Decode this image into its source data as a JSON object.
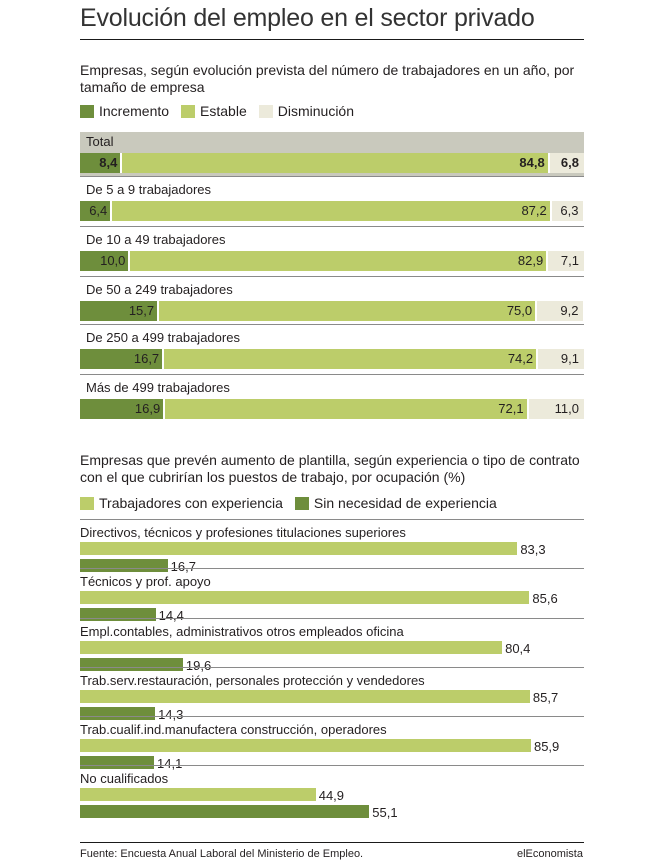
{
  "title": "Evolución del empleo en el sector privado",
  "colors": {
    "increment": "#6e8e3c",
    "stable": "#bccd6a",
    "decrease": "#eceadb",
    "total_band": "#c9c9bd"
  },
  "chart_data": [
    {
      "type": "bar",
      "stacked": true,
      "orientation": "horizontal",
      "title": "Empresas, según evolución prevista del número de trabajadores en un año, por tamaño de empresa",
      "legend": [
        "Incremento",
        "Estable",
        "Disminución"
      ],
      "legend_placement": "top-left",
      "categories": [
        "Total",
        "De 5 a 9 trabajadores",
        "De 10 a 49 trabajadores",
        "De 50 a 249 trabajadores",
        "De 250 a 499 trabajadores",
        "Más de 499 trabajadores"
      ],
      "series": [
        {
          "name": "Incremento",
          "values": [
            8.4,
            6.4,
            10.0,
            15.7,
            16.7,
            16.9
          ],
          "labels": [
            "8,4",
            "6,4",
            "10,0",
            "15,7",
            "16,7",
            "16,9"
          ]
        },
        {
          "name": "Estable",
          "values": [
            84.8,
            87.2,
            82.9,
            75.0,
            74.2,
            72.1
          ],
          "labels": [
            "84,8",
            "87,2",
            "82,9",
            "75,0",
            "74,2",
            "72,1"
          ]
        },
        {
          "name": "Disminución",
          "values": [
            6.8,
            6.3,
            7.1,
            9.2,
            9.1,
            11.0
          ],
          "labels": [
            "6,8",
            "6,3",
            "7,1",
            "9,2",
            "9,1",
            "11,0"
          ]
        }
      ],
      "grid": false
    },
    {
      "type": "bar",
      "orientation": "horizontal",
      "title": "Empresas que prevén aumento de plantilla, según experiencia o tipo de contrato con el que cubrirían los puestos de trabajo, por ocupación (%)",
      "legend": [
        "Trabajadores con experiencia",
        "Sin necesidad de experiencia"
      ],
      "legend_placement": "top-left",
      "categories": [
        "Directivos, técnicos y profesiones titulaciones superiores",
        "Técnicos y prof. apoyo",
        "Empl.contables, administrativos otros empleados oficina",
        "Trab.serv.restauración, personales protección y vendedores",
        "Trab.cualif.ind.manufactera construcción, operadores",
        "No cualificados"
      ],
      "series": [
        {
          "name": "Trabajadores con experiencia",
          "values": [
            83.3,
            85.6,
            80.4,
            85.7,
            85.9,
            44.9
          ],
          "labels": [
            "83,3",
            "85,6",
            "80,4",
            "85,7",
            "85,9",
            "44,9"
          ]
        },
        {
          "name": "Sin necesidad de experiencia",
          "values": [
            16.7,
            14.4,
            19.6,
            14.3,
            14.1,
            55.1
          ],
          "labels": [
            "16,7",
            "14,4",
            "19,6",
            "14,3",
            "14,1",
            "55,1"
          ]
        }
      ],
      "xlim": [
        0,
        100
      ],
      "grid": false
    }
  ],
  "footer": {
    "source": "Fuente: Encuesta Anual Laboral del Ministerio de Empleo.",
    "brand": "elEconomista"
  }
}
